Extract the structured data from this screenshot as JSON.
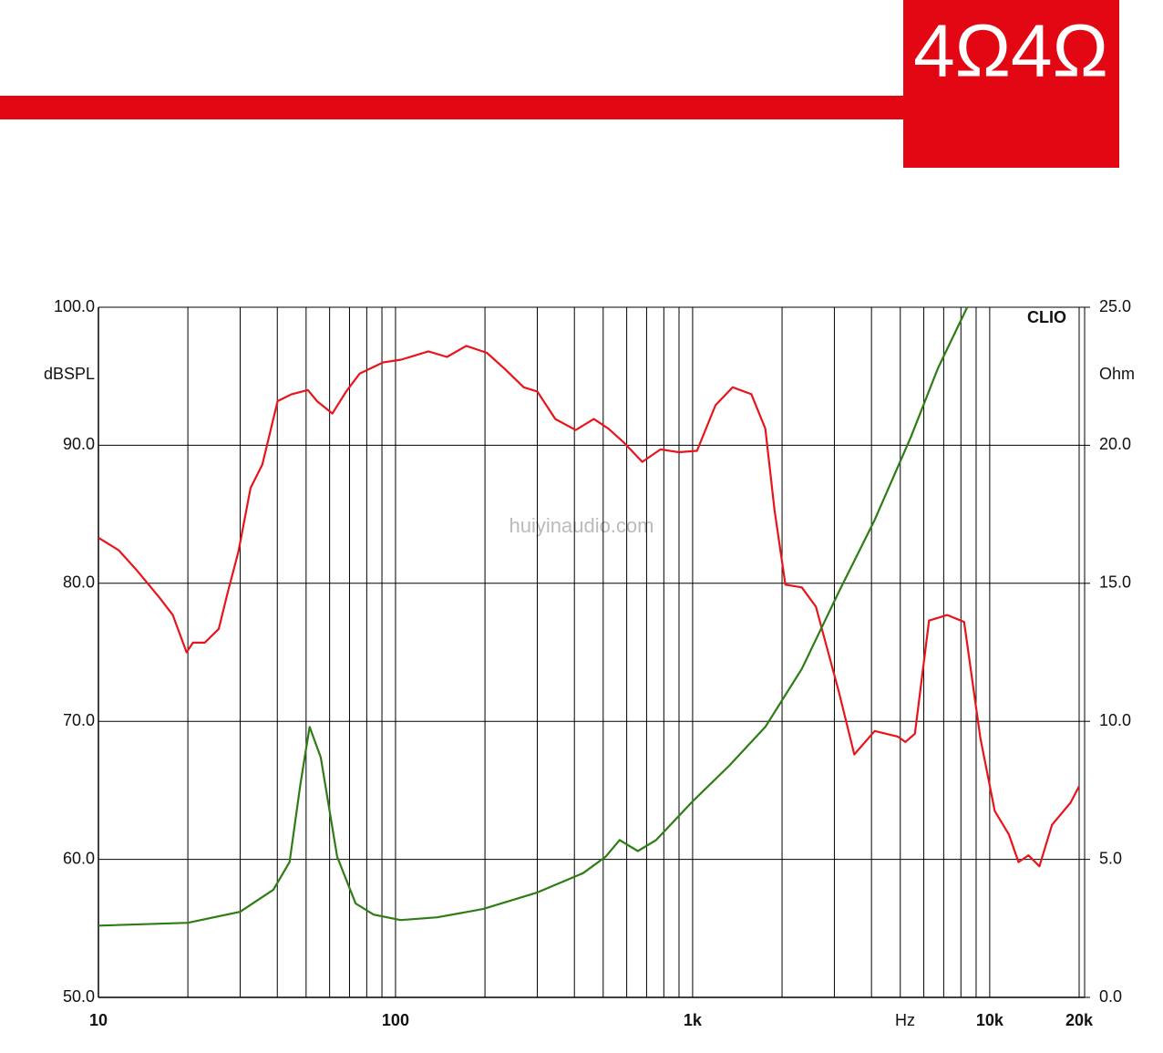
{
  "logo": "4Ω4Ω",
  "watermark": "huiyinaudio.com",
  "chart_data": {
    "type": "line",
    "brand": "CLIO",
    "xlabel": "Hz",
    "ylabel": "dBSPL",
    "y2label": "Ohm",
    "xscale": "log",
    "grid": true,
    "xlim": [
      10,
      20000
    ],
    "xticks": [
      10,
      100,
      {
        "value": 1000,
        "label": "1k"
      },
      {
        "value": 10000,
        "label": "10k"
      },
      {
        "value": 20000,
        "label": "20k"
      }
    ],
    "xminor_ticks": [
      20,
      30,
      40,
      50,
      60,
      70,
      80,
      90,
      200,
      300,
      400,
      500,
      600,
      700,
      800,
      900,
      2000,
      3000,
      4000,
      5000,
      6000,
      7000,
      8000,
      9000
    ],
    "ylim": [
      50,
      100
    ],
    "yticks": [
      {
        "value": 50,
        "label": "50.0"
      },
      {
        "value": 60,
        "label": "60.0"
      },
      {
        "value": 70,
        "label": "70.0"
      },
      {
        "value": 80,
        "label": "80.0"
      },
      {
        "value": 90,
        "label": "90.0"
      },
      {
        "value": 100,
        "label": "100.0"
      }
    ],
    "y2lim": [
      0,
      25
    ],
    "y2ticks": [
      {
        "value": 0,
        "label": "0.0"
      },
      {
        "value": 5,
        "label": "5.0"
      },
      {
        "value": 10,
        "label": "10.0"
      },
      {
        "value": 15,
        "label": "15.0"
      },
      {
        "value": 20,
        "label": "20.0"
      },
      {
        "value": 25,
        "label": "25.0"
      }
    ],
    "series": [
      {
        "color": "#e8141c",
        "x": [
          10,
          11.7,
          13.4,
          16,
          17.8,
          19.8,
          20.8,
          22.8,
          25.4,
          27.2,
          29.6,
          32.5,
          35.6,
          40.1,
          44.7,
          50.7,
          54.4,
          61.3,
          68.2,
          75.8,
          90.6,
          104.5,
          129,
          149,
          173,
          203,
          234,
          270,
          300,
          345,
          404,
          465,
          521,
          587,
          677,
          780,
          898,
          1034,
          1194,
          1364,
          1577,
          1757,
          1887,
          2052,
          2330,
          2600,
          3110,
          3500,
          4100,
          4900,
          5200,
          5600,
          6250,
          7200,
          8200,
          9300,
          10400,
          11600,
          12500,
          13500,
          14700,
          16200,
          18700,
          20000
        ],
        "values": [
          83.3,
          82.4,
          81.0,
          79.0,
          77.7,
          75.0,
          75.7,
          75.7,
          76.7,
          79.3,
          82.3,
          86.9,
          88.6,
          93.2,
          93.7,
          94.0,
          93.2,
          92.3,
          93.9,
          95.2,
          96.0,
          96.2,
          96.8,
          96.4,
          97.2,
          96.7,
          95.5,
          94.2,
          93.9,
          91.9,
          91.1,
          91.9,
          91.2,
          90.2,
          88.8,
          89.7,
          89.5,
          89.6,
          92.9,
          94.2,
          93.7,
          91.2,
          85.3,
          79.9,
          79.7,
          78.3,
          72.1,
          67.6,
          69.3,
          68.9,
          68.5,
          69.1,
          77.3,
          77.7,
          77.2,
          68.8,
          63.5,
          61.8,
          59.8,
          60.3,
          59.5,
          62.5,
          64.1,
          65.3
        ]
      },
      {
        "color": "#2e7d14",
        "axis": "y2",
        "x": [
          10,
          20,
          30,
          38.8,
          44,
          47.8,
          51.4,
          56,
          63.6,
          73.4,
          84.4,
          104,
          138,
          197,
          300,
          428,
          510,
          568,
          654,
          754,
          1000,
          1330,
          1757,
          2330,
          3110,
          4100,
          5430,
          6700,
          8400
        ],
        "values": [
          2.6,
          2.7,
          3.1,
          3.9,
          4.9,
          7.7,
          9.8,
          8.7,
          5.1,
          3.4,
          3.0,
          2.8,
          2.9,
          3.2,
          3.8,
          4.5,
          5.1,
          5.7,
          5.3,
          5.7,
          7.1,
          8.4,
          9.8,
          11.9,
          14.7,
          17.3,
          20.3,
          22.8,
          25.0
        ]
      }
    ]
  }
}
